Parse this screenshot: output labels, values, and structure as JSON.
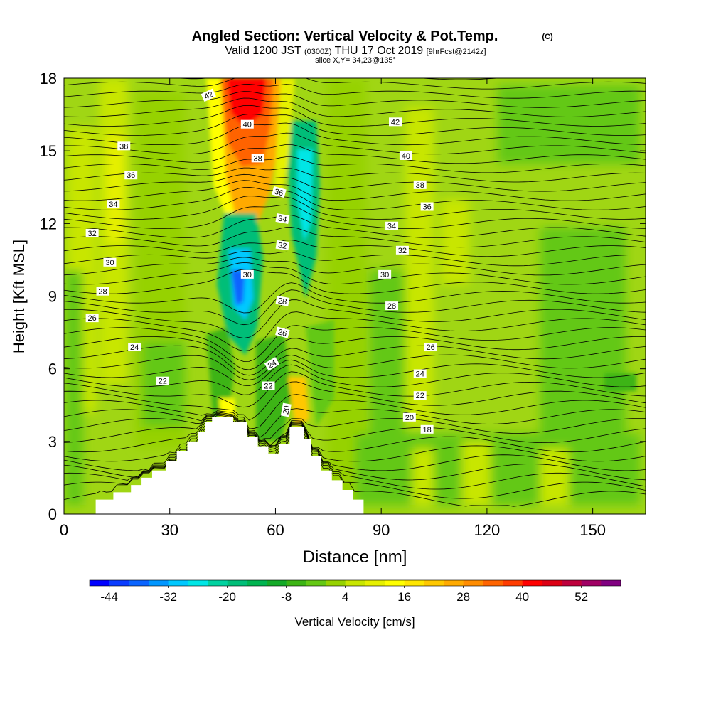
{
  "chart_data": {
    "type": "heatmap",
    "title": "Angled Section: Vertical Velocity & Pot.Temp.",
    "title_mark": "(C)",
    "subtitle_prefix": "Valid 1200 JST",
    "subtitle_utc": "(0300Z)",
    "subtitle_date": "THU 17 Oct 2019",
    "subtitle_fcst": "[9hrFcst@2142z]",
    "subtitle2": "slice X,Y= 34,23@135°",
    "xlabel": "Distance [nm]",
    "ylabel": "Height [Kft MSL]",
    "xlim": [
      0,
      165
    ],
    "ylim": [
      0,
      18
    ],
    "x_ticks": [
      "0",
      "30",
      "60",
      "90",
      "120",
      "150"
    ],
    "x_tick_values": [
      0,
      30,
      60,
      90,
      120,
      150
    ],
    "y_ticks": [
      "0",
      "3",
      "6",
      "9",
      "12",
      "15",
      "18"
    ],
    "y_tick_values": [
      0,
      3,
      6,
      9,
      12,
      15,
      18
    ],
    "colorbar": {
      "label": "Vertical Velocity [cm/s]",
      "range": [
        -48,
        60
      ],
      "step": 4,
      "tick_labels": [
        "-44",
        "-32",
        "-20",
        "-8",
        "4",
        "16",
        "28",
        "40",
        "52"
      ],
      "tick_values": [
        -44,
        -32,
        -20,
        -8,
        4,
        16,
        28,
        40,
        52
      ],
      "colors": [
        "#0000ff",
        "#0a3cff",
        "#0a64ff",
        "#0096ff",
        "#00c8ff",
        "#00e6e6",
        "#00d2a0",
        "#00be78",
        "#00b450",
        "#14aa28",
        "#3cb414",
        "#64c814",
        "#96d200",
        "#c8e600",
        "#e6f000",
        "#ffff00",
        "#ffe600",
        "#ffc800",
        "#ffaa00",
        "#ff8c00",
        "#ff6400",
        "#ff3c00",
        "#ff0000",
        "#dc0014",
        "#be003c",
        "#a00064",
        "#800080"
      ]
    },
    "terrain_profile": {
      "x": [
        0,
        9,
        9,
        14,
        14,
        19,
        19,
        22,
        22,
        25,
        25,
        29,
        29,
        32,
        32,
        35,
        35,
        38,
        38,
        40,
        40,
        42,
        42,
        48,
        48,
        52,
        52,
        55,
        55,
        58,
        58,
        61,
        61,
        64,
        64,
        68,
        68,
        70,
        70,
        73,
        73,
        76,
        76,
        79,
        79,
        82,
        82,
        85,
        85,
        165
      ],
      "y": [
        0,
        0,
        0.6,
        0.6,
        0.9,
        0.9,
        1.2,
        1.2,
        1.5,
        1.5,
        1.8,
        1.8,
        2.2,
        2.2,
        2.6,
        2.6,
        3.0,
        3.0,
        3.4,
        3.4,
        3.8,
        3.8,
        4.0,
        4.0,
        3.8,
        3.8,
        3.2,
        3.2,
        2.8,
        2.8,
        2.5,
        2.5,
        2.9,
        2.9,
        3.6,
        3.6,
        3.1,
        3.1,
        2.4,
        2.4,
        1.8,
        1.8,
        1.4,
        1.4,
        1.0,
        1.0,
        0.6,
        0.6,
        0,
        0
      ]
    },
    "theta_contour_labels": [
      {
        "x": 41,
        "y": 17.3,
        "text": "42",
        "angle": -25
      },
      {
        "x": 52,
        "y": 16.1,
        "text": "40"
      },
      {
        "x": 55,
        "y": 14.7,
        "text": "38"
      },
      {
        "x": 61,
        "y": 13.3,
        "text": "36",
        "angle": 15
      },
      {
        "x": 62,
        "y": 12.2,
        "text": "34",
        "angle": 10
      },
      {
        "x": 62,
        "y": 11.1,
        "text": "32",
        "angle": 8
      },
      {
        "x": 52,
        "y": 9.9,
        "text": "30"
      },
      {
        "x": 62,
        "y": 8.8,
        "text": "28",
        "angle": 10
      },
      {
        "x": 62,
        "y": 7.5,
        "text": "26",
        "angle": 15
      },
      {
        "x": 59,
        "y": 6.2,
        "text": "24",
        "angle": -30
      },
      {
        "x": 58,
        "y": 5.3,
        "text": "22"
      },
      {
        "x": 63,
        "y": 4.3,
        "text": "20",
        "angle": -80
      },
      {
        "x": 17,
        "y": 15.2,
        "text": "38"
      },
      {
        "x": 19,
        "y": 14.0,
        "text": "36"
      },
      {
        "x": 14,
        "y": 12.8,
        "text": "34"
      },
      {
        "x": 8,
        "y": 11.6,
        "text": "32"
      },
      {
        "x": 13,
        "y": 10.4,
        "text": "30"
      },
      {
        "x": 11,
        "y": 9.2,
        "text": "28"
      },
      {
        "x": 8,
        "y": 8.1,
        "text": "26"
      },
      {
        "x": 20,
        "y": 6.9,
        "text": "24"
      },
      {
        "x": 28,
        "y": 5.5,
        "text": "22"
      },
      {
        "x": 94,
        "y": 16.2,
        "text": "42"
      },
      {
        "x": 97,
        "y": 14.8,
        "text": "40"
      },
      {
        "x": 101,
        "y": 13.6,
        "text": "38"
      },
      {
        "x": 103,
        "y": 12.7,
        "text": "36"
      },
      {
        "x": 93,
        "y": 11.9,
        "text": "34"
      },
      {
        "x": 96,
        "y": 10.9,
        "text": "32"
      },
      {
        "x": 91,
        "y": 9.9,
        "text": "30"
      },
      {
        "x": 93,
        "y": 8.6,
        "text": "28"
      },
      {
        "x": 104,
        "y": 6.9,
        "text": "26"
      },
      {
        "x": 101,
        "y": 5.8,
        "text": "24"
      },
      {
        "x": 101,
        "y": 4.9,
        "text": "22"
      },
      {
        "x": 98,
        "y": 4.0,
        "text": "20"
      },
      {
        "x": 103,
        "y": 3.5,
        "text": "18"
      }
    ]
  }
}
